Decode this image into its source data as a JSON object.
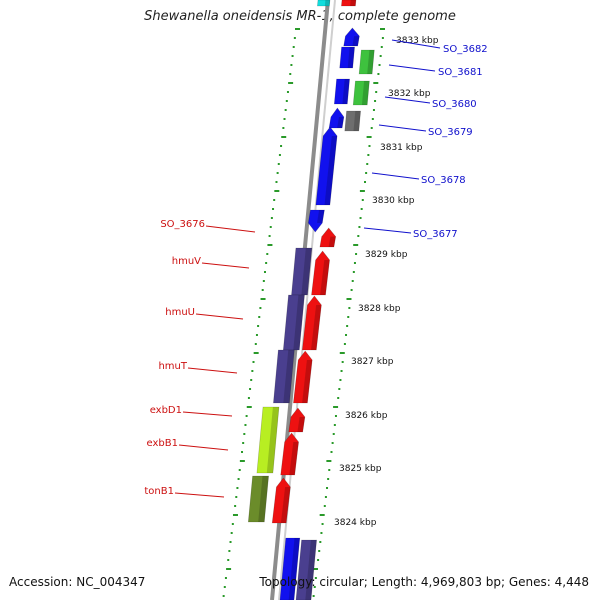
{
  "title": "Shewanella oneidensis MR-1, complete genome",
  "footer": {
    "accession": "Accession: NC_004347",
    "topology": "Topology: circular; Length: 4,969,803 bp; Genes: 4,448"
  },
  "colors": {
    "backbone": "#8c8c8c",
    "tick_dots": "#2a9a2a",
    "forward_label": "#1010cc",
    "reverse_label": "#cc1010",
    "gene_red": "#ee1111",
    "gene_blue": "#1111ee",
    "gene_navy": "#4a3f8f",
    "gene_green": "#3ec23e",
    "gene_gray": "#6e6e6e",
    "gene_lime": "#b8ee22",
    "gene_olive": "#6b8c2a",
    "gene_cyan": "#11dddd"
  },
  "kbp_ticks": [
    "3833 kbp",
    "3832 kbp",
    "3831 kbp",
    "3830 kbp",
    "3829 kbp",
    "3828 kbp",
    "3827 kbp",
    "3826 kbp",
    "3825 kbp",
    "3824 kbp"
  ],
  "forward_genes": [
    "SO_3682",
    "SO_3681",
    "SO_3680",
    "SO_3679",
    "SO_3678",
    "SO_3677"
  ],
  "reverse_genes": [
    "SO_3676",
    "hmuV",
    "hmuU",
    "hmuT",
    "exbD1",
    "exbB1",
    "tonB1"
  ]
}
